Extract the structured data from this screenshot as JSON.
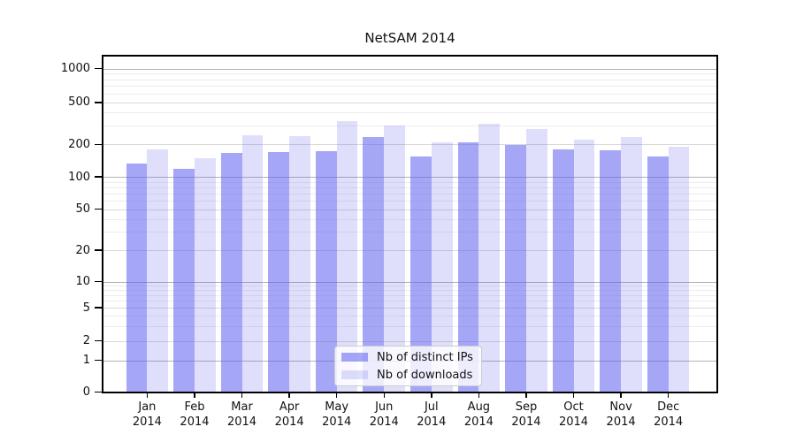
{
  "chart_data": {
    "type": "bar",
    "title": "NetSAM 2014",
    "categories": [
      "Jan",
      "Feb",
      "Mar",
      "Apr",
      "May",
      "Jun",
      "Jul",
      "Aug",
      "Sep",
      "Oct",
      "Nov",
      "Dec"
    ],
    "category_year": "2014",
    "series": [
      {
        "name": "Nb of distinct IPs",
        "color": "rgba(93,93,240,0.55)",
        "values": [
          133,
          119,
          167,
          171,
          173,
          237,
          155,
          210,
          199,
          179,
          175,
          154
        ]
      },
      {
        "name": "Nb of downloads",
        "color": "rgba(93,93,240,0.20)",
        "values": [
          179,
          148,
          244,
          238,
          330,
          300,
          209,
          315,
          281,
          220,
          235,
          191
        ]
      }
    ],
    "y_axis": {
      "scale": "symlog",
      "ticks": [
        1000,
        500,
        200,
        100,
        50,
        20,
        10,
        5,
        2,
        1,
        0
      ],
      "top_value": 1400
    },
    "grid": true,
    "legend_position": "lower center",
    "grid_colors": {
      "major": "#b3b3b3",
      "mid": "#d9d9d9",
      "minor": "#ededed"
    }
  }
}
